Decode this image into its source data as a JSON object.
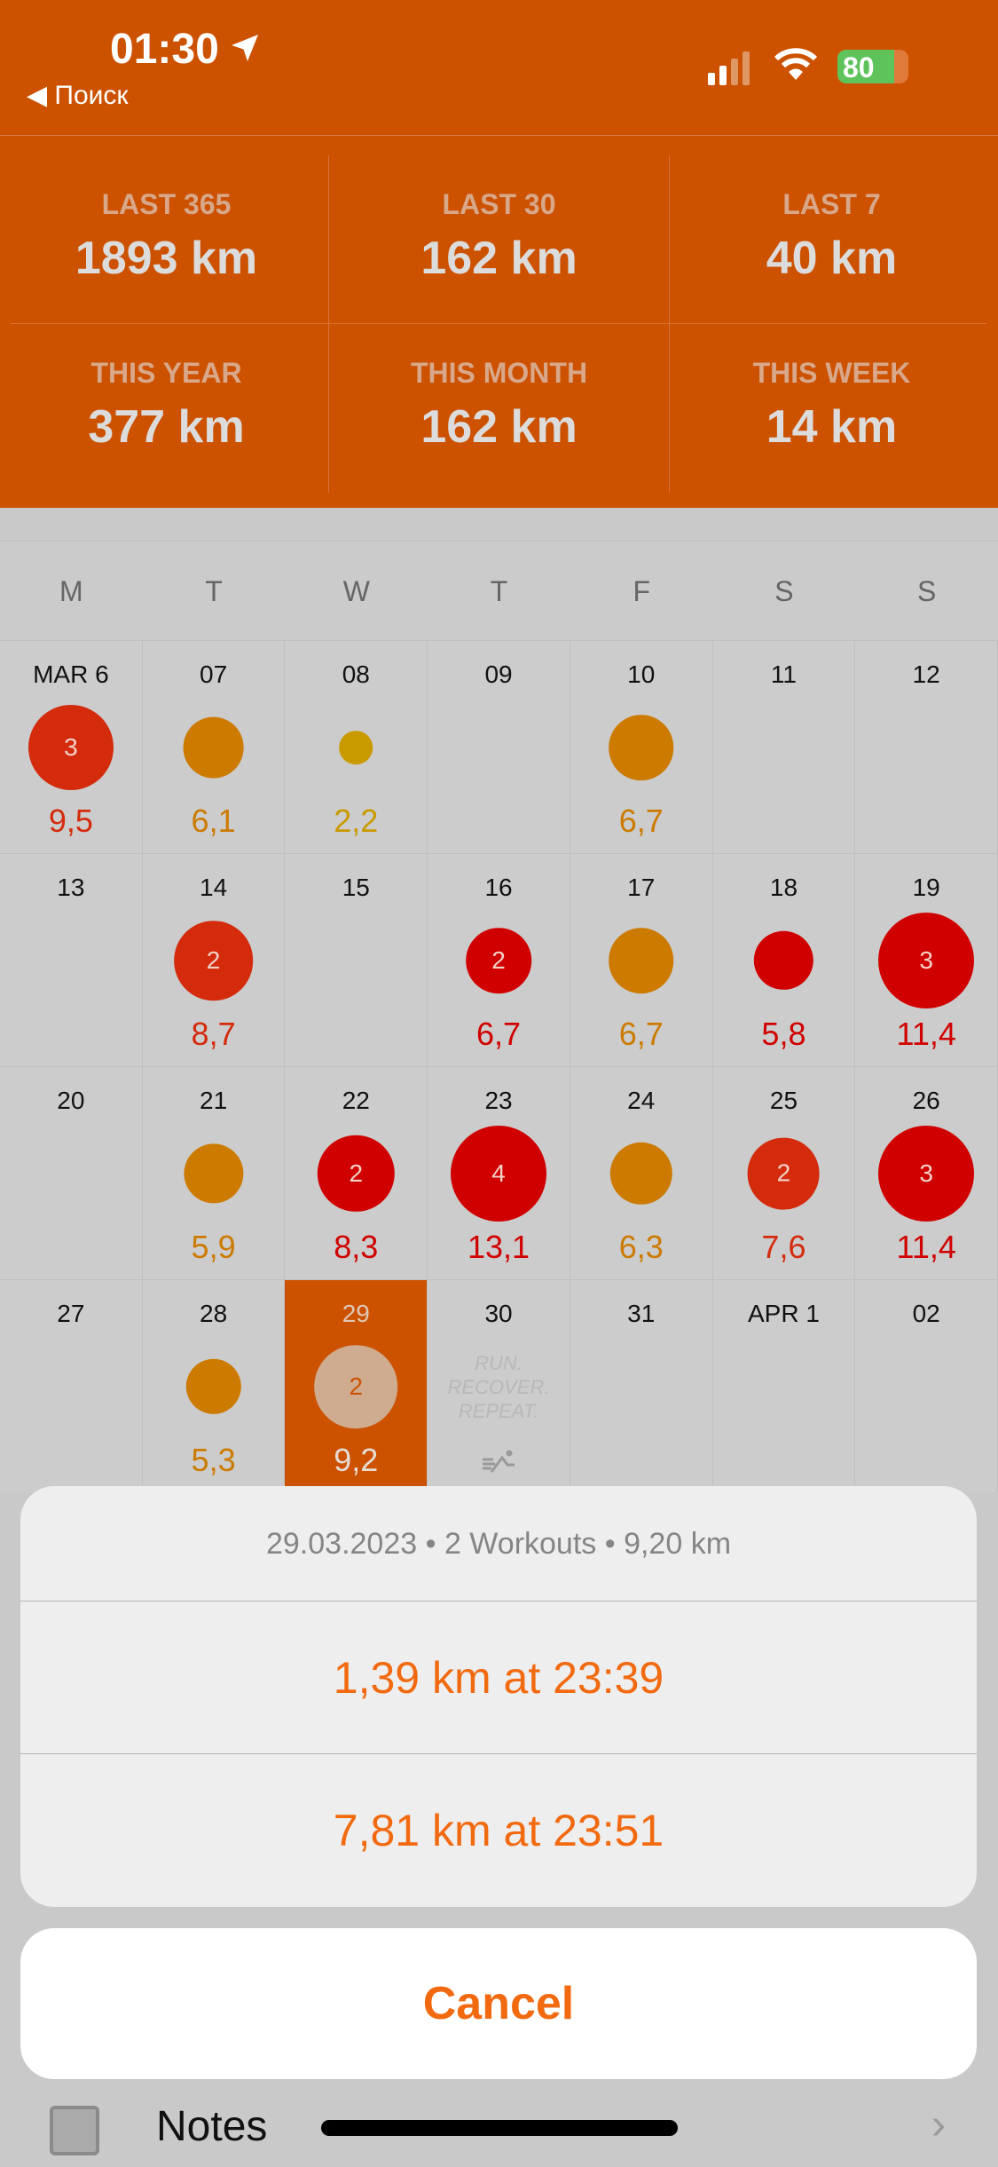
{
  "status": {
    "time": "01:30",
    "back_label": "◀ Поиск",
    "battery": "80",
    "battery_level": 0.8
  },
  "stats": [
    {
      "label": "LAST 365",
      "value": "1893 km"
    },
    {
      "label": "LAST 30",
      "value": "162 km"
    },
    {
      "label": "LAST 7",
      "value": "40 km"
    },
    {
      "label": "THIS YEAR",
      "value": "377 km"
    },
    {
      "label": "THIS MONTH",
      "value": "162 km"
    },
    {
      "label": "THIS WEEK",
      "value": "14 km"
    }
  ],
  "weekdays": [
    "M",
    "T",
    "W",
    "T",
    "F",
    "S",
    "S"
  ],
  "colors": {
    "brand": "#cc5200",
    "red": "#d10000",
    "deep_red": "#d42b0d",
    "amber": "#cc7a00",
    "yellow": "#c99a00",
    "action": "#f26a10"
  },
  "calendar": [
    [
      {
        "date": "MAR 6",
        "count": "3",
        "distance": "9,5",
        "km": 9.5,
        "color": "#d42b0d"
      },
      {
        "date": "07",
        "count": "",
        "distance": "6,1",
        "km": 6.1,
        "color": "#cc7a00"
      },
      {
        "date": "08",
        "count": "",
        "distance": "2,2",
        "km": 2.2,
        "color": "#c99a00"
      },
      {
        "date": "09"
      },
      {
        "date": "10",
        "count": "",
        "distance": "6,7",
        "km": 6.7,
        "color": "#cc7a00"
      },
      {
        "date": "11"
      },
      {
        "date": "12"
      }
    ],
    [
      {
        "date": "13"
      },
      {
        "date": "14",
        "count": "2",
        "distance": "8,7",
        "km": 8.7,
        "color": "#d42b0d"
      },
      {
        "date": "15"
      },
      {
        "date": "16",
        "count": "2",
        "distance": "6,7",
        "km": 6.7,
        "color": "#d10000"
      },
      {
        "date": "17",
        "count": "",
        "distance": "6,7",
        "km": 6.7,
        "color": "#cc7a00"
      },
      {
        "date": "18",
        "count": "",
        "distance": "5,8",
        "km": 5.8,
        "color": "#d10000"
      },
      {
        "date": "19",
        "count": "3",
        "distance": "11,4",
        "km": 11.4,
        "color": "#d10000"
      }
    ],
    [
      {
        "date": "20"
      },
      {
        "date": "21",
        "count": "",
        "distance": "5,9",
        "km": 5.9,
        "color": "#cc7a00"
      },
      {
        "date": "22",
        "count": "2",
        "distance": "8,3",
        "km": 8.3,
        "color": "#d10000"
      },
      {
        "date": "23",
        "count": "4",
        "distance": "13,1",
        "km": 13.1,
        "color": "#d10000"
      },
      {
        "date": "24",
        "count": "",
        "distance": "6,3",
        "km": 6.3,
        "color": "#cc7a00"
      },
      {
        "date": "25",
        "count": "2",
        "distance": "7,6",
        "km": 7.6,
        "color": "#d42b0d"
      },
      {
        "date": "26",
        "count": "3",
        "distance": "11,4",
        "km": 11.4,
        "color": "#d10000"
      }
    ],
    [
      {
        "date": "27"
      },
      {
        "date": "28",
        "count": "",
        "distance": "5,3",
        "km": 5.3,
        "color": "#cc7a00"
      },
      {
        "date": "29",
        "count": "2",
        "distance": "9,2",
        "km": 9.2,
        "color": "#cc5200",
        "selected": true
      },
      {
        "date": "30",
        "motto": "RUN.\nRECOVER.\nREPEAT."
      },
      {
        "date": "31"
      },
      {
        "date": "APR 1"
      },
      {
        "date": "02"
      }
    ]
  ],
  "sheet": {
    "title": "29.03.2023 • 2 Workouts • 9,20 km",
    "actions": [
      "1,39 km at 23:39",
      "7,81 km at 23:51"
    ],
    "cancel": "Cancel"
  },
  "notes_label": "Notes"
}
